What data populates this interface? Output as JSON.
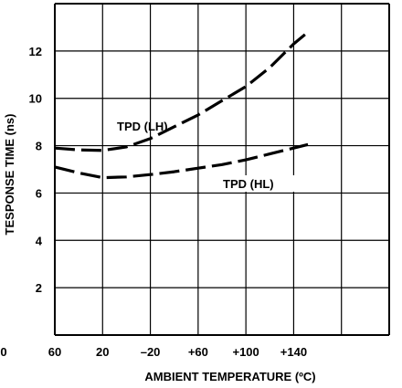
{
  "chart_data": {
    "type": "line",
    "xlabel": "AMBIENT TEMPERATURE (ºC)",
    "ylabel": "TESPONSE TIME (ns)",
    "x_tick_labels": [
      "60",
      "20",
      "–20",
      "+60",
      "+100",
      "+140"
    ],
    "edge_label": "0",
    "y_ticks": [
      2,
      4,
      6,
      8,
      10,
      12
    ],
    "ylim": [
      0,
      14
    ],
    "grid": true,
    "series": [
      {
        "name": "TPD (LH)",
        "points": [
          [
            0,
            7.9
          ],
          [
            0.5,
            7.82
          ],
          [
            1,
            7.8
          ],
          [
            1.5,
            7.95
          ],
          [
            2,
            8.3
          ],
          [
            2.5,
            8.8
          ],
          [
            3,
            9.3
          ],
          [
            3.5,
            9.9
          ],
          [
            4,
            10.5
          ],
          [
            4.5,
            11.3
          ],
          [
            5,
            12.3
          ],
          [
            5.3,
            12.8
          ]
        ]
      },
      {
        "name": "TPD (HL)",
        "points": [
          [
            0,
            7.1
          ],
          [
            0.5,
            6.85
          ],
          [
            1,
            6.65
          ],
          [
            1.5,
            6.68
          ],
          [
            2,
            6.78
          ],
          [
            2.5,
            6.9
          ],
          [
            3,
            7.05
          ],
          [
            3.5,
            7.2
          ],
          [
            4,
            7.4
          ],
          [
            4.5,
            7.65
          ],
          [
            5,
            7.9
          ],
          [
            5.3,
            8.05
          ]
        ]
      }
    ]
  }
}
